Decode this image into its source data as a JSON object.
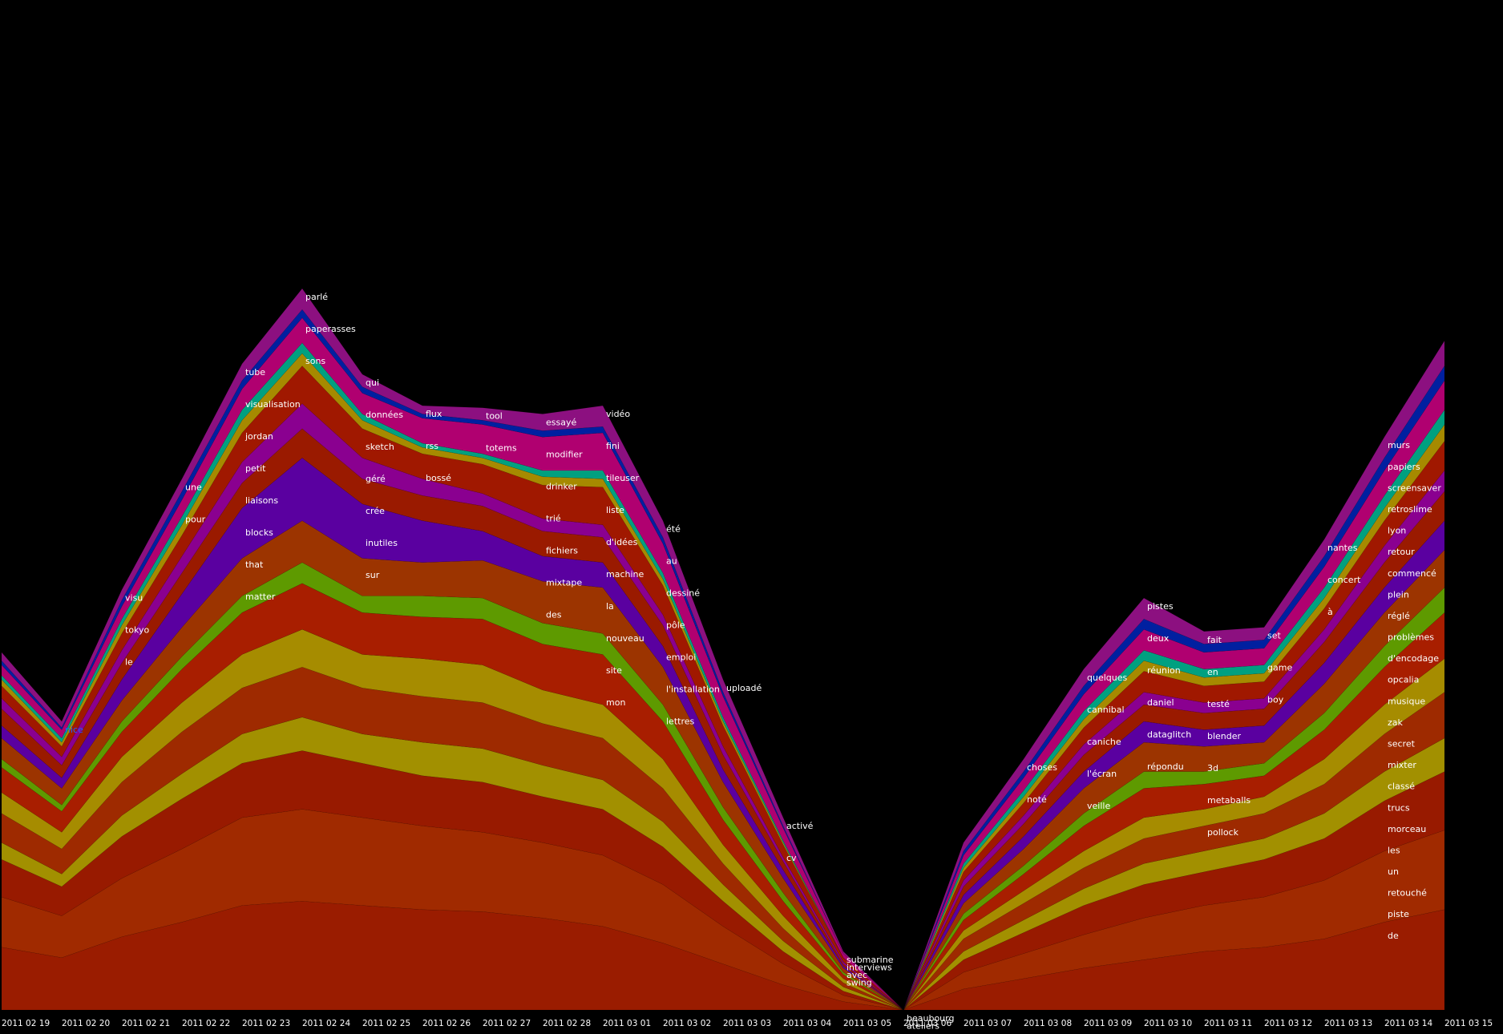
{
  "chart_data": {
    "type": "area",
    "subtype": "streamgraph",
    "title": "",
    "xlabel": "",
    "ylabel": "",
    "background": "#000000",
    "x": [
      "2011 02 19",
      "2011 02 20",
      "2011 02 21",
      "2011 02 22",
      "2011 02 23",
      "2011 02 24",
      "2011 02 25",
      "2011 02 26",
      "2011 02 27",
      "2011 02 28",
      "2011 03 01",
      "2011 03 02",
      "2011 03 03",
      "2011 03 04",
      "2011 03 05",
      "2011 03 06",
      "2011 03 07",
      "2011 03 08",
      "2011 03 09",
      "2011 03 10",
      "2011 03 11",
      "2011 03 12",
      "2011 03 13",
      "2011 03 14",
      "2011 03 15"
    ],
    "series": [
      {
        "name": "sur",
        "color": "#9a1c00",
        "values": [
          30,
          25,
          35,
          42,
          50,
          52,
          50,
          48,
          47,
          44,
          40,
          32,
          22,
          12,
          4,
          0,
          10,
          15,
          20,
          24,
          28,
          30,
          34,
          42,
          48
        ]
      },
      {
        "name": "bossé",
        "color": "#a02a00",
        "values": [
          24,
          20,
          28,
          35,
          42,
          44,
          42,
          40,
          38,
          36,
          34,
          28,
          18,
          10,
          3,
          0,
          8,
          12,
          16,
          20,
          22,
          24,
          28,
          34,
          38
        ]
      },
      {
        "name": "pour",
        "color": "#981a00",
        "values": [
          18,
          14,
          20,
          24,
          26,
          28,
          26,
          24,
          24,
          22,
          22,
          18,
          12,
          6,
          2,
          0,
          6,
          10,
          14,
          16,
          16,
          18,
          20,
          24,
          28
        ]
      },
      {
        "name": "une",
        "color": "#a29000",
        "values": [
          8,
          6,
          10,
          12,
          14,
          16,
          14,
          16,
          16,
          15,
          14,
          12,
          8,
          5,
          2,
          0,
          4,
          6,
          8,
          10,
          10,
          10,
          12,
          14,
          16
        ]
      },
      {
        "name": "mon",
        "color": "#9e2a00",
        "values": [
          14,
          12,
          16,
          20,
          22,
          24,
          22,
          22,
          22,
          20,
          20,
          16,
          10,
          6,
          2,
          0,
          6,
          8,
          10,
          12,
          12,
          12,
          14,
          18,
          22
        ]
      },
      {
        "name": "site",
        "color": "#a68c00",
        "values": [
          10,
          8,
          12,
          14,
          16,
          18,
          16,
          18,
          18,
          16,
          16,
          14,
          9,
          6,
          2,
          0,
          4,
          6,
          8,
          10,
          8,
          8,
          12,
          14,
          16
        ]
      },
      {
        "name": "des",
        "color": "#a81e00",
        "values": [
          12,
          10,
          12,
          16,
          20,
          22,
          20,
          20,
          22,
          22,
          24,
          18,
          12,
          7,
          2,
          0,
          5,
          8,
          12,
          14,
          12,
          10,
          14,
          18,
          22
        ]
      },
      {
        "name": "nouveau",
        "color": "#5e9a00",
        "values": [
          4,
          3,
          5,
          6,
          8,
          10,
          8,
          10,
          10,
          10,
          10,
          8,
          6,
          4,
          1,
          0,
          3,
          4,
          6,
          8,
          6,
          6,
          8,
          10,
          12
        ]
      },
      {
        "name": "la",
        "color": "#9c3400",
        "values": [
          10,
          8,
          10,
          14,
          18,
          20,
          18,
          16,
          18,
          20,
          22,
          18,
          12,
          7,
          2,
          0,
          5,
          8,
          12,
          14,
          12,
          10,
          14,
          16,
          18
        ]
      },
      {
        "name": "matter",
        "color": "#5a00a0",
        "values": [
          6,
          5,
          10,
          16,
          24,
          30,
          26,
          20,
          14,
          12,
          12,
          10,
          6,
          4,
          1,
          0,
          4,
          6,
          8,
          10,
          8,
          8,
          10,
          12,
          14
        ]
      },
      {
        "name": "that",
        "color": "#9a1a00",
        "values": [
          8,
          6,
          8,
          10,
          12,
          14,
          12,
          12,
          12,
          12,
          12,
          10,
          7,
          4,
          1,
          0,
          4,
          6,
          8,
          8,
          8,
          8,
          10,
          12,
          14
        ]
      },
      {
        "name": "blocks",
        "color": "#8a0090",
        "values": [
          5,
          4,
          6,
          8,
          10,
          12,
          10,
          8,
          6,
          6,
          6,
          5,
          4,
          2,
          1,
          0,
          3,
          4,
          5,
          6,
          5,
          5,
          6,
          8,
          10
        ]
      },
      {
        "name": "liaisons",
        "color": "#a01800",
        "values": [
          6,
          5,
          8,
          10,
          14,
          18,
          14,
          12,
          14,
          16,
          18,
          14,
          10,
          6,
          2,
          0,
          4,
          6,
          8,
          10,
          8,
          8,
          10,
          12,
          14
        ]
      },
      {
        "name": "sons",
        "color": "#a68a00",
        "values": [
          3,
          2,
          4,
          5,
          6,
          6,
          4,
          3,
          3,
          4,
          4,
          3,
          2,
          1,
          0,
          0,
          2,
          3,
          4,
          5,
          4,
          4,
          5,
          6,
          8
        ]
      },
      {
        "name": "petit",
        "color": "#00a080",
        "values": [
          2,
          2,
          3,
          4,
          5,
          5,
          3,
          2,
          2,
          3,
          4,
          3,
          2,
          1,
          0,
          0,
          2,
          3,
          4,
          5,
          4,
          4,
          5,
          6,
          7
        ]
      },
      {
        "name": "tool",
        "color": "#b00070",
        "values": [
          5,
          4,
          6,
          8,
          10,
          12,
          10,
          12,
          14,
          16,
          18,
          14,
          10,
          6,
          2,
          0,
          4,
          6,
          8,
          10,
          8,
          8,
          10,
          12,
          14
        ]
      },
      {
        "name": "visualisation",
        "color": "#0020a0",
        "values": [
          2,
          1,
          3,
          4,
          4,
          4,
          3,
          2,
          2,
          3,
          3,
          3,
          2,
          1,
          0,
          0,
          2,
          3,
          4,
          5,
          4,
          4,
          5,
          6,
          7
        ]
      },
      {
        "name": "tube",
        "color": "#8c1080",
        "values": [
          4,
          3,
          5,
          6,
          8,
          10,
          6,
          4,
          6,
          8,
          10,
          8,
          6,
          4,
          1,
          0,
          4,
          6,
          8,
          10,
          6,
          6,
          8,
          10,
          12
        ]
      }
    ],
    "annotations": [
      {
        "x": "2011 02 20",
        "text": "nice",
        "color": "#2060ff"
      },
      {
        "x": "2011 02 21",
        "text": "visu",
        "color": "#ffffff"
      },
      {
        "x": "2011 02 21",
        "text": "tokyo",
        "color": "#ffffff"
      },
      {
        "x": "2011 02 21",
        "text": "le",
        "color": "#ffffff"
      },
      {
        "x": "2011 02 22",
        "text": "une",
        "color": "#ffffff"
      },
      {
        "x": "2011 02 22",
        "text": "pour",
        "color": "#ffffff"
      },
      {
        "x": "2011 02 23",
        "text": "tube",
        "color": "#ffffff"
      },
      {
        "x": "2011 02 23",
        "text": "visualisation",
        "color": "#ffffff"
      },
      {
        "x": "2011 02 23",
        "text": "jordan",
        "color": "#ffffff"
      },
      {
        "x": "2011 02 23",
        "text": "petit",
        "color": "#ffffff"
      },
      {
        "x": "2011 02 23",
        "text": "liaisons",
        "color": "#ffffff"
      },
      {
        "x": "2011 02 23",
        "text": "blocks",
        "color": "#ffffff"
      },
      {
        "x": "2011 02 23",
        "text": "that",
        "color": "#ffffff"
      },
      {
        "x": "2011 02 23",
        "text": "matter",
        "color": "#ffffff"
      },
      {
        "x": "2011 02 24",
        "text": "parlé",
        "color": "#ffffff"
      },
      {
        "x": "2011 02 24",
        "text": "paperasses",
        "color": "#ffffff"
      },
      {
        "x": "2011 02 24",
        "text": "sons",
        "color": "#ffffff"
      },
      {
        "x": "2011 02 25",
        "text": "qui",
        "color": "#ffffff"
      },
      {
        "x": "2011 02 25",
        "text": "données",
        "color": "#ffffff"
      },
      {
        "x": "2011 02 25",
        "text": "sketch",
        "color": "#ffffff"
      },
      {
        "x": "2011 02 25",
        "text": "géré",
        "color": "#ffffff"
      },
      {
        "x": "2011 02 25",
        "text": "crée",
        "color": "#ffffff"
      },
      {
        "x": "2011 02 25",
        "text": "inutiles",
        "color": "#ffffff"
      },
      {
        "x": "2011 02 25",
        "text": "sur",
        "color": "#ffffff"
      },
      {
        "x": "2011 02 26",
        "text": "flux",
        "color": "#ffffff"
      },
      {
        "x": "2011 02 26",
        "text": "rss",
        "color": "#ffffff"
      },
      {
        "x": "2011 02 26",
        "text": "bossé",
        "color": "#ffffff"
      },
      {
        "x": "2011 02 27",
        "text": "tool",
        "color": "#ffffff"
      },
      {
        "x": "2011 02 27",
        "text": "totems",
        "color": "#ffffff"
      },
      {
        "x": "2011 02 28",
        "text": "essayé",
        "color": "#ffffff"
      },
      {
        "x": "2011 02 28",
        "text": "modifier",
        "color": "#ffffff"
      },
      {
        "x": "2011 02 28",
        "text": "drinker",
        "color": "#ffffff"
      },
      {
        "x": "2011 02 28",
        "text": "trié",
        "color": "#ffffff"
      },
      {
        "x": "2011 02 28",
        "text": "fichiers",
        "color": "#ffffff"
      },
      {
        "x": "2011 02 28",
        "text": "mixtape",
        "color": "#ffffff"
      },
      {
        "x": "2011 02 28",
        "text": "des",
        "color": "#ffffff"
      },
      {
        "x": "2011 03 01",
        "text": "vidéo",
        "color": "#ffffff"
      },
      {
        "x": "2011 03 01",
        "text": "fini",
        "color": "#ffffff"
      },
      {
        "x": "2011 03 01",
        "text": "tileuser",
        "color": "#ffffff"
      },
      {
        "x": "2011 03 01",
        "text": "liste",
        "color": "#ffffff"
      },
      {
        "x": "2011 03 01",
        "text": "d'idées",
        "color": "#ffffff"
      },
      {
        "x": "2011 03 01",
        "text": "machine",
        "color": "#ffffff"
      },
      {
        "x": "2011 03 01",
        "text": "la",
        "color": "#ffffff"
      },
      {
        "x": "2011 03 01",
        "text": "nouveau",
        "color": "#ffffff"
      },
      {
        "x": "2011 03 01",
        "text": "site",
        "color": "#ffffff"
      },
      {
        "x": "2011 03 01",
        "text": "mon",
        "color": "#ffffff"
      },
      {
        "x": "2011 03 02",
        "text": "été",
        "color": "#ffffff"
      },
      {
        "x": "2011 03 02",
        "text": "au",
        "color": "#ffffff"
      },
      {
        "x": "2011 03 02",
        "text": "dessiné",
        "color": "#ffffff"
      },
      {
        "x": "2011 03 02",
        "text": "pôle",
        "color": "#ffffff"
      },
      {
        "x": "2011 03 02",
        "text": "emploi",
        "color": "#ffffff"
      },
      {
        "x": "2011 03 02",
        "text": "l'installation",
        "color": "#ffffff"
      },
      {
        "x": "2011 03 02",
        "text": "lettres",
        "color": "#ffffff"
      },
      {
        "x": "2011 03 03",
        "text": "uploadé",
        "color": "#ffffff"
      },
      {
        "x": "2011 03 04",
        "text": "activé",
        "color": "#ffffff"
      },
      {
        "x": "2011 03 04",
        "text": "cv",
        "color": "#ffffff"
      },
      {
        "x": "2011 03 05",
        "text": "submarine",
        "color": "#ffffff"
      },
      {
        "x": "2011 03 05",
        "text": "interviews",
        "color": "#ffffff"
      },
      {
        "x": "2011 03 05",
        "text": "avec",
        "color": "#ffffff"
      },
      {
        "x": "2011 03 05",
        "text": "swing",
        "color": "#ffffff"
      },
      {
        "x": "2011 03 06",
        "text": "beaubourg",
        "color": "#ffffff"
      },
      {
        "x": "2011 03 06",
        "text": "ateliers",
        "color": "#ffffff"
      },
      {
        "x": "2011 03 08",
        "text": "choses",
        "color": "#ffffff"
      },
      {
        "x": "2011 03 08",
        "text": "noté",
        "color": "#ffffff"
      },
      {
        "x": "2011 03 09",
        "text": "quelques",
        "color": "#ffffff"
      },
      {
        "x": "2011 03 09",
        "text": "cannibal",
        "color": "#ffffff"
      },
      {
        "x": "2011 03 09",
        "text": "caniche",
        "color": "#ffffff"
      },
      {
        "x": "2011 03 09",
        "text": "l'écran",
        "color": "#ffffff"
      },
      {
        "x": "2011 03 09",
        "text": "veille",
        "color": "#ffffff"
      },
      {
        "x": "2011 03 10",
        "text": "pistes",
        "color": "#ffffff"
      },
      {
        "x": "2011 03 10",
        "text": "deux",
        "color": "#ffffff"
      },
      {
        "x": "2011 03 10",
        "text": "réunion",
        "color": "#ffffff"
      },
      {
        "x": "2011 03 10",
        "text": "daniel",
        "color": "#ffffff"
      },
      {
        "x": "2011 03 10",
        "text": "dataglitch",
        "color": "#ffffff"
      },
      {
        "x": "2011 03 10",
        "text": "répondu",
        "color": "#ffffff"
      },
      {
        "x": "2011 03 11",
        "text": "fait",
        "color": "#ffffff"
      },
      {
        "x": "2011 03 11",
        "text": "en",
        "color": "#ffffff"
      },
      {
        "x": "2011 03 11",
        "text": "testé",
        "color": "#ffffff"
      },
      {
        "x": "2011 03 11",
        "text": "blender",
        "color": "#ffffff"
      },
      {
        "x": "2011 03 11",
        "text": "3d",
        "color": "#ffffff"
      },
      {
        "x": "2011 03 11",
        "text": "metaballs",
        "color": "#ffffff"
      },
      {
        "x": "2011 03 11",
        "text": "pollock",
        "color": "#ffffff"
      },
      {
        "x": "2011 03 12",
        "text": "set",
        "color": "#ffffff"
      },
      {
        "x": "2011 03 12",
        "text": "game",
        "color": "#ffffff"
      },
      {
        "x": "2011 03 12",
        "text": "boy",
        "color": "#ffffff"
      },
      {
        "x": "2011 03 13",
        "text": "nantes",
        "color": "#ffffff"
      },
      {
        "x": "2011 03 13",
        "text": "concert",
        "color": "#ffffff"
      },
      {
        "x": "2011 03 13",
        "text": "à",
        "color": "#ffffff"
      },
      {
        "x": "2011 03 14",
        "text": "murs",
        "color": "#ffffff"
      },
      {
        "x": "2011 03 14",
        "text": "papiers",
        "color": "#ffffff"
      },
      {
        "x": "2011 03 14",
        "text": "screensaver",
        "color": "#ffffff"
      },
      {
        "x": "2011 03 14",
        "text": "retroslime",
        "color": "#ffffff"
      },
      {
        "x": "2011 03 14",
        "text": "lyon",
        "color": "#ffffff"
      },
      {
        "x": "2011 03 14",
        "text": "retour",
        "color": "#ffffff"
      },
      {
        "x": "2011 03 14",
        "text": "commencé",
        "color": "#ffffff"
      },
      {
        "x": "2011 03 14",
        "text": "plein",
        "color": "#ffffff"
      },
      {
        "x": "2011 03 14",
        "text": "réglé",
        "color": "#ffffff"
      },
      {
        "x": "2011 03 14",
        "text": "problèmes",
        "color": "#ffffff"
      },
      {
        "x": "2011 03 14",
        "text": "d'encodage",
        "color": "#ffffff"
      },
      {
        "x": "2011 03 14",
        "text": "opcalia",
        "color": "#ffffff"
      },
      {
        "x": "2011 03 14",
        "text": "musique",
        "color": "#ffffff"
      },
      {
        "x": "2011 03 14",
        "text": "zak",
        "color": "#ffffff"
      },
      {
        "x": "2011 03 14",
        "text": "secret",
        "color": "#ffffff"
      },
      {
        "x": "2011 03 14",
        "text": "mixter",
        "color": "#ffffff"
      },
      {
        "x": "2011 03 14",
        "text": "classé",
        "color": "#ffffff"
      },
      {
        "x": "2011 03 14",
        "text": "trucs",
        "color": "#ffffff"
      },
      {
        "x": "2011 03 14",
        "text": "morceau",
        "color": "#ffffff"
      },
      {
        "x": "2011 03 14",
        "text": "les",
        "color": "#ffffff"
      },
      {
        "x": "2011 03 14",
        "text": "un",
        "color": "#ffffff"
      },
      {
        "x": "2011 03 14",
        "text": "retouché",
        "color": "#ffffff"
      },
      {
        "x": "2011 03 14",
        "text": "piste",
        "color": "#ffffff"
      },
      {
        "x": "2011 03 14",
        "text": "de",
        "color": "#ffffff"
      }
    ]
  }
}
